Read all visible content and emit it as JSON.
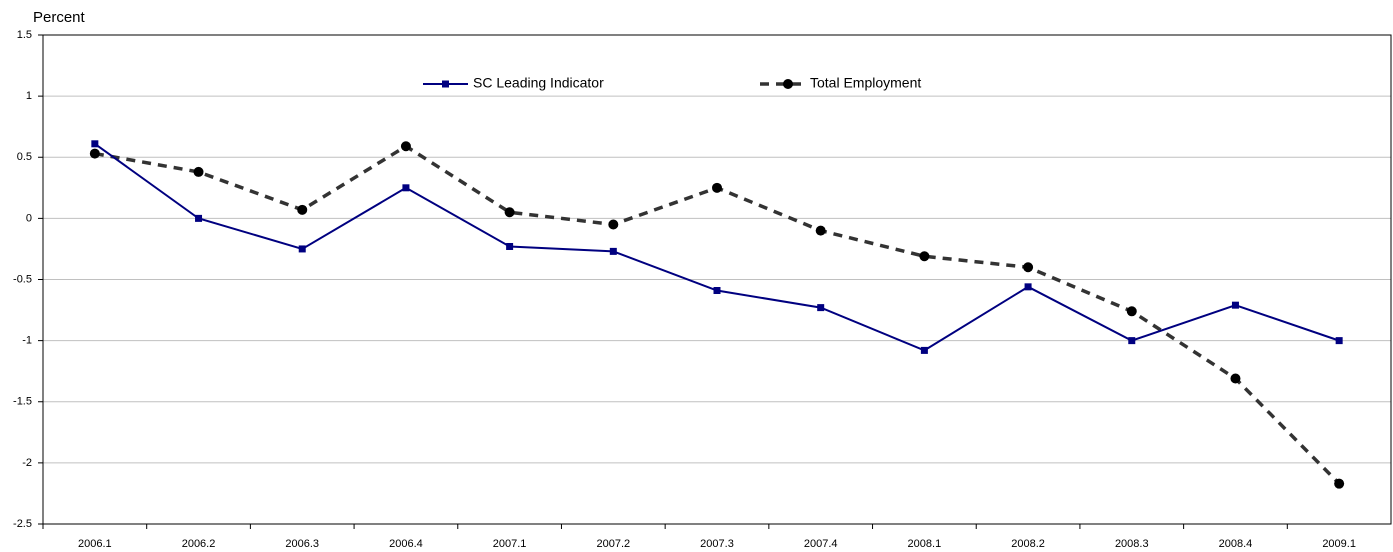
{
  "chart_data": {
    "type": "line",
    "y_label": "Percent",
    "categories": [
      "2006.1",
      "2006.2",
      "2006.3",
      "2006.4",
      "2007.1",
      "2007.2",
      "2007.3",
      "2007.4",
      "2008.1",
      "2008.2",
      "2008.3",
      "2008.4",
      "2009.1"
    ],
    "series": [
      {
        "name": "SC Leading Indicator",
        "color": "#000080",
        "marker": "square",
        "dash": false,
        "values": [
          0.61,
          0.0,
          -0.25,
          0.25,
          -0.23,
          -0.27,
          -0.59,
          -0.73,
          -1.08,
          -0.56,
          -1.0,
          -0.71,
          -1.0
        ]
      },
      {
        "name": "Total Employment",
        "color": "#000000",
        "marker": "circle",
        "dash": true,
        "values": [
          0.53,
          0.38,
          0.07,
          0.59,
          0.05,
          -0.05,
          0.25,
          -0.1,
          -0.31,
          -0.4,
          -0.76,
          -1.31,
          -2.17
        ]
      }
    ],
    "ylim": [
      -2.5,
      1.5
    ],
    "yticks": [
      1.5,
      1,
      0.5,
      0,
      -0.5,
      -1,
      -1.5,
      -2,
      -2.5
    ],
    "grid": true
  }
}
